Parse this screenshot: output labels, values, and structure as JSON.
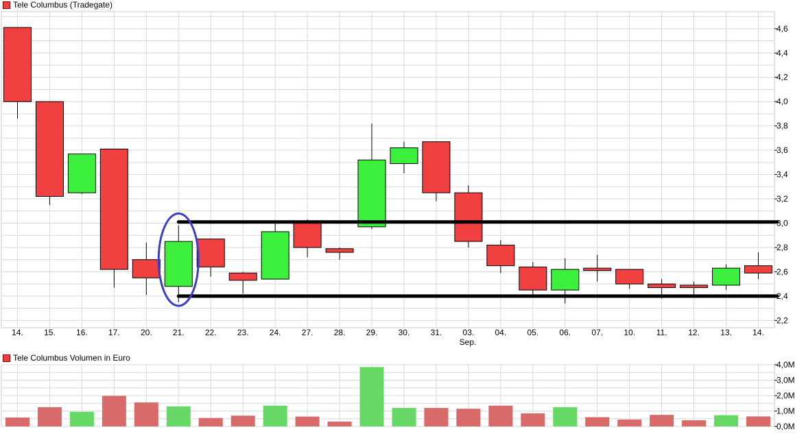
{
  "price_legend": "Tele Columbus (Tradegate)",
  "volume_legend": "Tele Columbus Volumen in Euro",
  "month_label": "Sep.",
  "colors": {
    "up": "#3ef03e",
    "down": "#f04040",
    "vol_up": "#66d866",
    "vol_down": "#d86a6a",
    "grid": "#d9d9d9",
    "ellipse": "#3c3cc8",
    "lines": "#000000"
  },
  "chart_data": [
    {
      "type": "candlestick",
      "title": "Tele Columbus (Tradegate)",
      "categories": [
        "14.",
        "15.",
        "16.",
        "17.",
        "20.",
        "21.",
        "22.",
        "23.",
        "24.",
        "27.",
        "28.",
        "29.",
        "30.",
        "31.",
        "03.",
        "04.",
        "05.",
        "06.",
        "07.",
        "10.",
        "11.",
        "12.",
        "13.",
        "14."
      ],
      "open": [
        4.61,
        4.0,
        3.25,
        3.61,
        2.7,
        2.48,
        2.87,
        2.59,
        2.54,
        3.01,
        2.79,
        2.97,
        3.49,
        3.67,
        3.25,
        2.82,
        2.64,
        2.45,
        2.63,
        2.62,
        2.5,
        2.49,
        2.49,
        2.65
      ],
      "close": [
        4.0,
        3.22,
        3.57,
        2.62,
        2.55,
        2.85,
        2.64,
        2.53,
        2.93,
        2.8,
        2.76,
        3.52,
        3.62,
        3.25,
        2.85,
        2.65,
        2.45,
        2.62,
        2.61,
        2.5,
        2.47,
        2.47,
        2.63,
        2.59
      ],
      "high": [
        4.61,
        4.0,
        3.57,
        3.61,
        2.84,
        2.98,
        2.87,
        2.6,
        3.0,
        3.03,
        2.8,
        3.82,
        3.67,
        3.67,
        3.31,
        2.86,
        2.68,
        2.71,
        2.74,
        2.62,
        2.54,
        2.52,
        2.66,
        2.76
      ],
      "low": [
        3.86,
        3.15,
        3.24,
        2.47,
        2.41,
        2.35,
        2.56,
        2.42,
        2.54,
        2.72,
        2.7,
        2.95,
        3.41,
        3.18,
        2.8,
        2.59,
        2.4,
        2.34,
        2.52,
        2.46,
        2.38,
        2.4,
        2.45,
        2.54
      ],
      "ylim": [
        2.14,
        4.74
      ],
      "yticks": [
        "2,2",
        "2,4",
        "2,6",
        "2,8",
        "3,0",
        "3,2",
        "3,4",
        "3,6",
        "3,8",
        "4,0",
        "4,2",
        "4,4",
        "4,6"
      ],
      "ytick_values": [
        2.2,
        2.4,
        2.6,
        2.8,
        3.0,
        3.2,
        3.4,
        3.6,
        3.8,
        4.0,
        4.2,
        4.4,
        4.6
      ],
      "annotations": {
        "horizontal_lines": [
          3.01,
          2.4
        ],
        "highlight_category": "21."
      },
      "grid": true,
      "axis_side": "right"
    },
    {
      "type": "bar",
      "title": "Tele Columbus Volumen in Euro",
      "categories": [
        "14.",
        "15.",
        "16.",
        "17.",
        "20.",
        "21.",
        "22.",
        "23.",
        "24.",
        "27.",
        "28.",
        "29.",
        "30.",
        "31.",
        "03.",
        "04.",
        "05.",
        "06.",
        "07.",
        "10.",
        "11.",
        "12.",
        "13.",
        "14."
      ],
      "values": [
        0.58,
        1.25,
        0.95,
        1.98,
        1.56,
        1.3,
        0.55,
        0.7,
        1.35,
        0.64,
        0.32,
        3.85,
        1.2,
        1.2,
        1.15,
        1.35,
        0.85,
        1.25,
        0.6,
        0.45,
        0.75,
        0.4,
        0.73,
        0.65
      ],
      "up": [
        false,
        false,
        true,
        false,
        false,
        true,
        false,
        false,
        true,
        false,
        false,
        true,
        true,
        false,
        false,
        false,
        false,
        true,
        false,
        false,
        false,
        false,
        true,
        false
      ],
      "unit": "M EUR",
      "ylim": [
        0,
        4.0
      ],
      "yticks": [
        "0,0M",
        "1,0M",
        "2,0M",
        "3,0M",
        "4,0M"
      ],
      "ytick_values": [
        0,
        1,
        2,
        3,
        4
      ],
      "grid": true
    }
  ]
}
